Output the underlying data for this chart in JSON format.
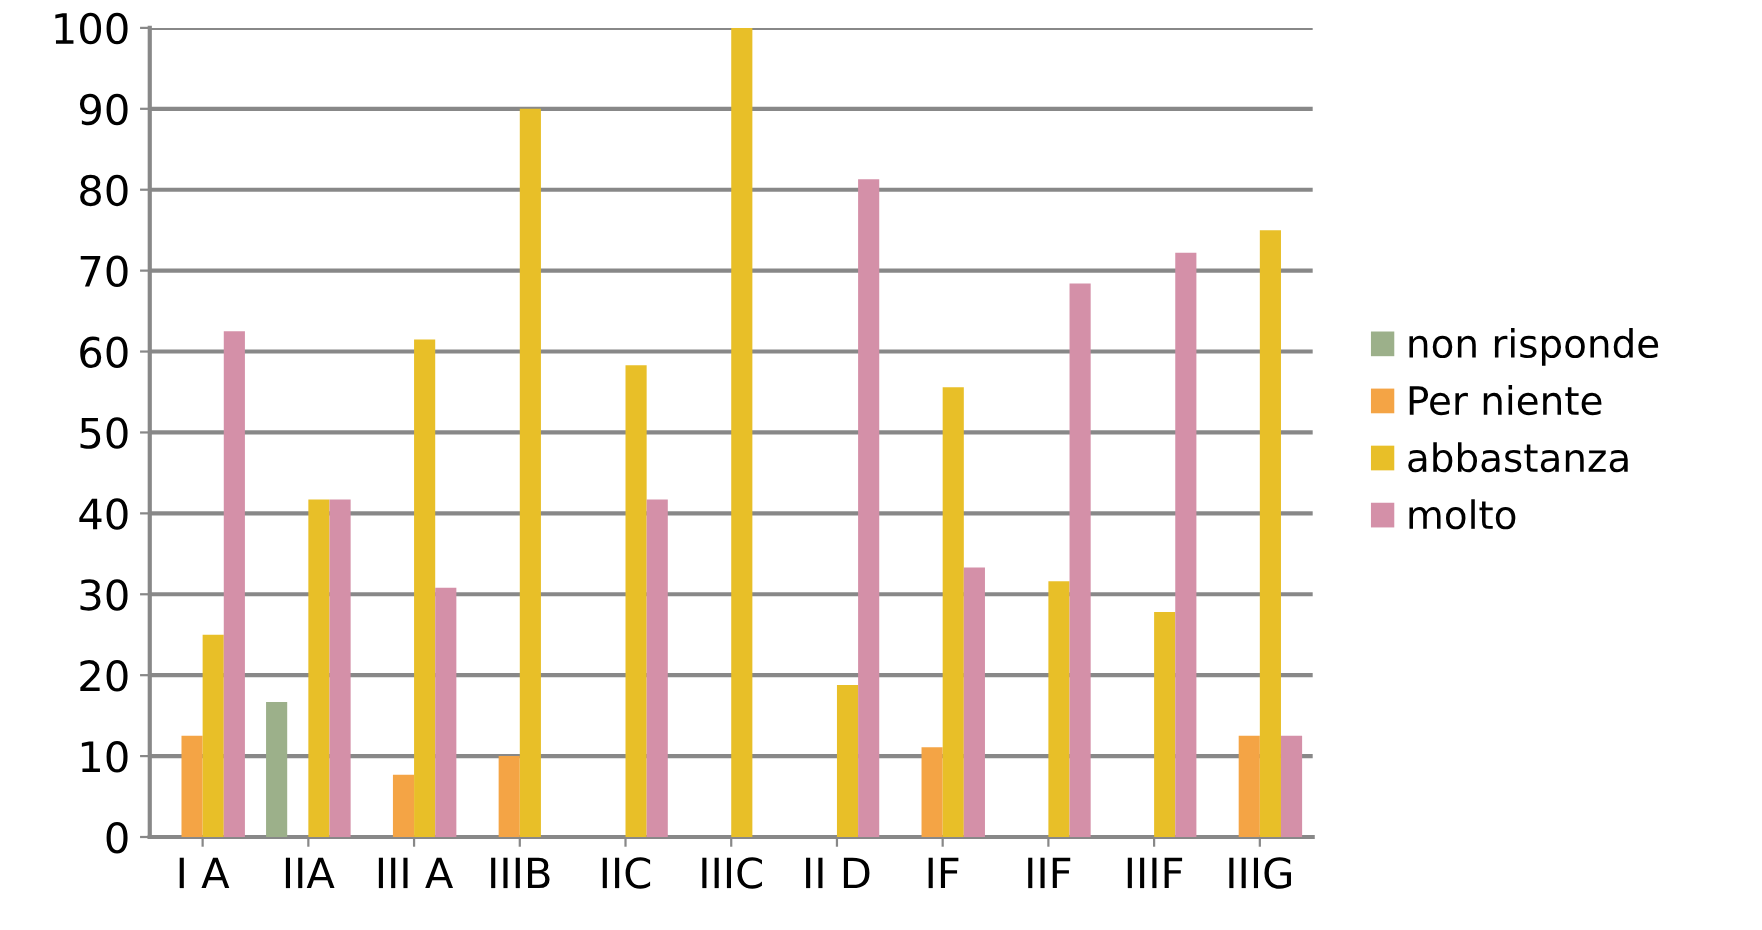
{
  "chart_data": {
    "type": "bar",
    "categories": [
      "I A",
      "IIA",
      "III A",
      "IIIB",
      "IIC",
      "IIIC",
      "II D",
      "IF",
      "IIF",
      "IIIF",
      "IIIG"
    ],
    "series": [
      {
        "name": "non risponde",
        "color": "#9cb08a",
        "values": [
          0,
          16.7,
          0,
          0,
          0,
          0,
          0,
          0,
          0,
          0,
          0
        ]
      },
      {
        "name": "Per niente",
        "color": "#f4a445",
        "values": [
          12.5,
          0,
          7.7,
          10,
          0,
          0,
          0,
          11.1,
          0,
          0,
          12.5
        ]
      },
      {
        "name": "abbastanza",
        "color": "#e8bf28",
        "values": [
          25,
          41.7,
          61.5,
          90,
          58.3,
          100,
          18.8,
          55.6,
          31.6,
          27.8,
          75
        ]
      },
      {
        "name": "molto",
        "color": "#d490a8",
        "values": [
          62.5,
          41.7,
          30.8,
          0,
          41.7,
          0,
          81.3,
          33.3,
          68.4,
          72.2,
          12.5
        ]
      }
    ],
    "ylim": [
      0,
      100
    ],
    "yticks": [
      0,
      10,
      20,
      30,
      40,
      50,
      60,
      70,
      80,
      90,
      100
    ],
    "grid": "y",
    "legend": "right"
  }
}
